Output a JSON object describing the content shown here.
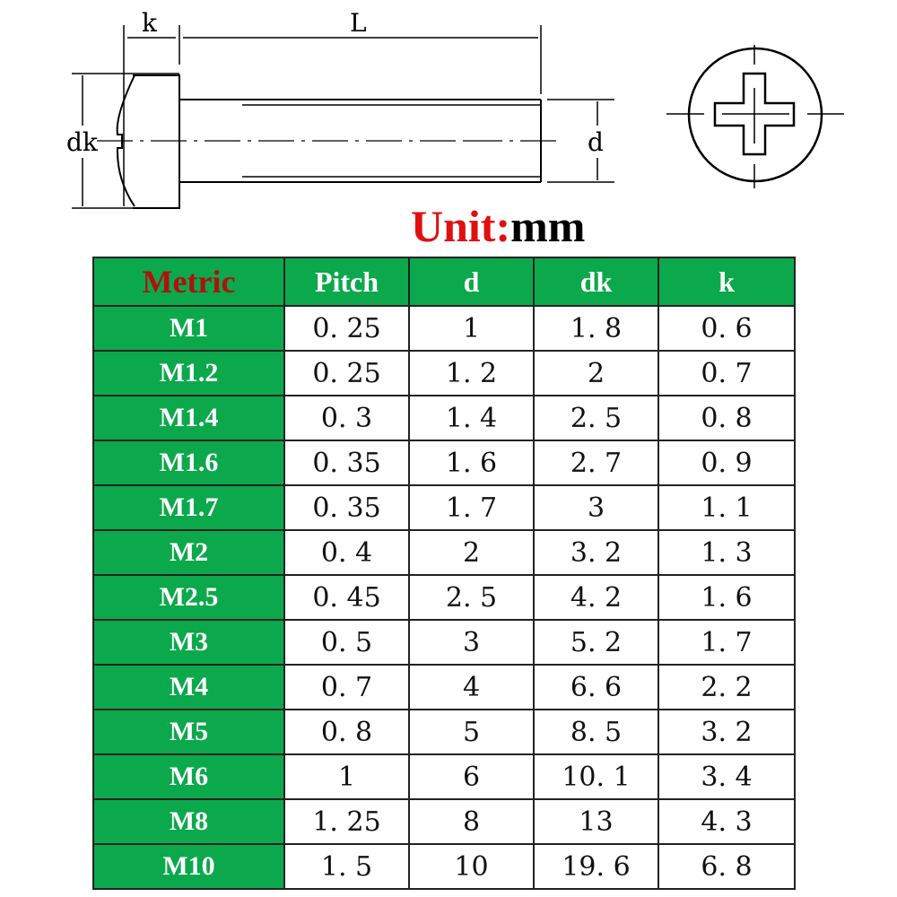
{
  "diagram": {
    "labels": {
      "k": "k",
      "L": "L",
      "dk": "dk",
      "d": "d"
    }
  },
  "unit": {
    "label": "Unit:",
    "value": "mm"
  },
  "table": {
    "headers": [
      "Metric",
      "Pitch",
      "d",
      "dk",
      "k"
    ],
    "rows": [
      [
        "M1",
        "0. 25",
        "1",
        "1. 8",
        "0. 6"
      ],
      [
        "M1.2",
        "0. 25",
        "1. 2",
        "2",
        "0. 7"
      ],
      [
        "M1.4",
        "0. 3",
        "1. 4",
        "2. 5",
        "0. 8"
      ],
      [
        "M1.6",
        "0. 35",
        "1. 6",
        "2. 7",
        "0. 9"
      ],
      [
        "M1.7",
        "0. 35",
        "1. 7",
        "3",
        "1. 1"
      ],
      [
        "M2",
        "0. 4",
        "2",
        "3. 2",
        "1. 3"
      ],
      [
        "M2.5",
        "0. 45",
        "2. 5",
        "4. 2",
        "1. 6"
      ],
      [
        "M3",
        "0. 5",
        "3",
        "5. 2",
        "1. 7"
      ],
      [
        "M4",
        "0. 7",
        "4",
        "6. 6",
        "2. 2"
      ],
      [
        "M5",
        "0. 8",
        "5",
        "8. 5",
        "3. 2"
      ],
      [
        "M6",
        "1",
        "6",
        "10. 1",
        "3. 4"
      ],
      [
        "M8",
        "1. 25",
        "8",
        "13",
        "4. 3"
      ],
      [
        "M10",
        "1. 5",
        "10",
        "19. 6",
        "6. 8"
      ]
    ]
  },
  "colors": {
    "header_green": "#0ca84c",
    "unit_red": "#e01010",
    "metric_red": "#b01010"
  }
}
